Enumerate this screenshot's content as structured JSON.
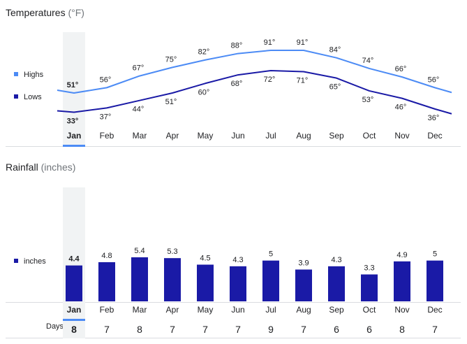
{
  "temperatures": {
    "title": "Temperatures",
    "unit": "(°F)",
    "legend": {
      "highs": "Highs",
      "lows": "Lows"
    },
    "colors": {
      "highs": "#4c8bf5",
      "lows": "#1a1aa6"
    }
  },
  "rainfall": {
    "title": "Rainfall",
    "unit": "(inches)",
    "legend": {
      "inches": "inches"
    },
    "colors": {
      "bars": "#1a1aa6"
    }
  },
  "days_label": "Days",
  "selected_month_index": 0,
  "selection_color": "#4c8bf5",
  "chart_data": [
    {
      "type": "line",
      "title": "Temperatures",
      "categories": [
        "Jan",
        "Feb",
        "Mar",
        "Apr",
        "May",
        "Jun",
        "Jul",
        "Aug",
        "Sep",
        "Oct",
        "Nov",
        "Dec"
      ],
      "series": [
        {
          "name": "Highs",
          "values": [
            51,
            56,
            67,
            75,
            82,
            88,
            91,
            91,
            84,
            74,
            66,
            56
          ],
          "labels": [
            "51°",
            "56°",
            "67°",
            "75°",
            "82°",
            "88°",
            "91°",
            "91°",
            "84°",
            "74°",
            "66°",
            "56°"
          ]
        },
        {
          "name": "Lows",
          "values": [
            33,
            37,
            44,
            51,
            60,
            68,
            72,
            71,
            65,
            53,
            46,
            36
          ],
          "labels": [
            "33°",
            "37°",
            "44°",
            "51°",
            "60°",
            "68°",
            "72°",
            "71°",
            "65°",
            "53°",
            "46°",
            "36°"
          ]
        }
      ]
    },
    {
      "type": "bar",
      "title": "Rainfall",
      "categories": [
        "Jan",
        "Feb",
        "Mar",
        "Apr",
        "May",
        "Jun",
        "Jul",
        "Aug",
        "Sep",
        "Oct",
        "Nov",
        "Dec"
      ],
      "series": [
        {
          "name": "inches",
          "values": [
            4.4,
            4.8,
            5.4,
            5.3,
            4.5,
            4.3,
            5,
            3.9,
            4.3,
            3.3,
            4.9,
            5
          ],
          "labels": [
            "4.4",
            "4.8",
            "5.4",
            "5.3",
            "4.5",
            "4.3",
            "5",
            "3.9",
            "4.3",
            "3.3",
            "4.9",
            "5"
          ]
        }
      ],
      "days": [
        "8",
        "7",
        "8",
        "7",
        "7",
        "7",
        "9",
        "7",
        "6",
        "6",
        "8",
        "7"
      ]
    }
  ]
}
